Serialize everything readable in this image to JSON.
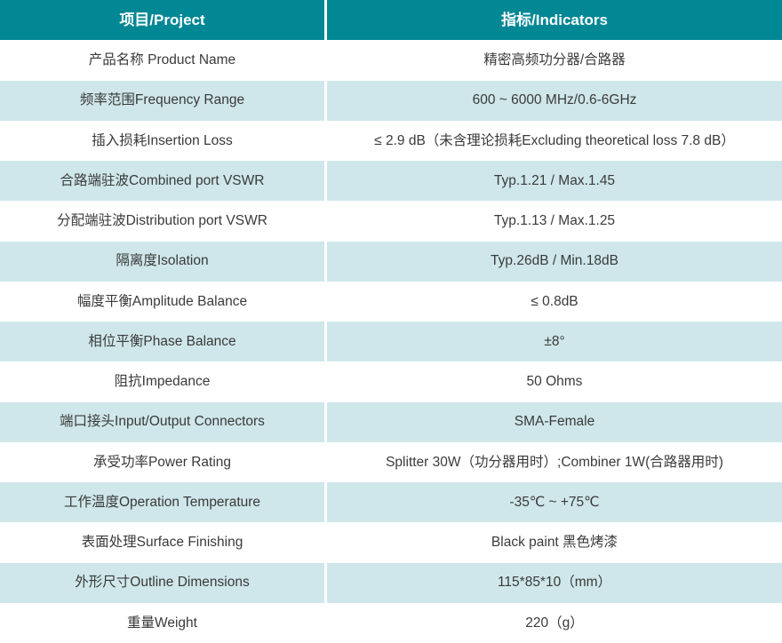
{
  "table": {
    "accent_color": "#028795",
    "alt_row_color": "#cfe7ea",
    "text_color": "#3a3a3a",
    "header": {
      "project": "项目/Project",
      "indicators": "指标/Indicators"
    },
    "rows": [
      {
        "project": "产品名称 Product Name",
        "indicator": "精密高频功分器/合路器"
      },
      {
        "project": "频率范围Frequency Range",
        "indicator": "600 ~ 6000 MHz/0.6-6GHz"
      },
      {
        "project": "插入损耗Insertion Loss",
        "indicator": "≤ 2.9 dB（未含理论损耗Excluding theoretical loss 7.8 dB）"
      },
      {
        "project": "合路端驻波Combined port VSWR",
        "indicator": "Typ.1.21 / Max.1.45"
      },
      {
        "project": "分配端驻波Distribution port VSWR",
        "indicator": "Typ.1.13 / Max.1.25"
      },
      {
        "project": "隔离度Isolation",
        "indicator": "Typ.26dB / Min.18dB"
      },
      {
        "project": "幅度平衡Amplitude Balance",
        "indicator": "≤ 0.8dB"
      },
      {
        "project": "相位平衡Phase Balance",
        "indicator": "±8°"
      },
      {
        "project": "阻抗Impedance",
        "indicator": "50 Ohms"
      },
      {
        "project": "端口接头Input/Output Connectors",
        "indicator": "SMA-Female"
      },
      {
        "project": "承受功率Power Rating",
        "indicator": "Splitter 30W（功分器用时）;Combiner 1W(合路器用时)"
      },
      {
        "project": "工作温度Operation Temperature",
        "indicator": "-35℃ ~ +75℃"
      },
      {
        "project": "表面处理Surface Finishing",
        "indicator": "Black paint 黑色烤漆"
      },
      {
        "project": "外形尺寸Outline Dimensions",
        "indicator": "115*85*10（mm）"
      },
      {
        "project": "重量Weight",
        "indicator": "220（g）"
      }
    ]
  }
}
